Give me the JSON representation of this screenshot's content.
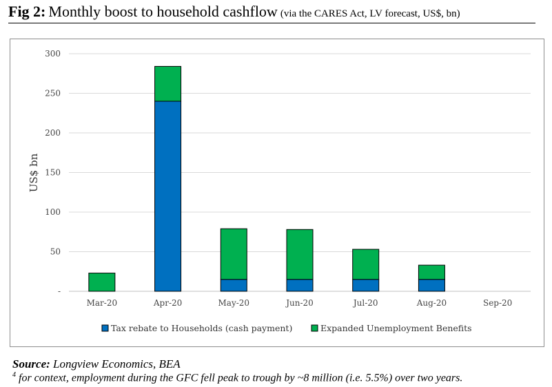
{
  "figure": {
    "label": "Fig 2:",
    "title": "Monthly boost to household cashflow",
    "subtitle": "(via the CARES Act, LV forecast, US$, bn)"
  },
  "chart_data": {
    "type": "bar",
    "stacked": true,
    "categories": [
      "Mar-20",
      "Apr-20",
      "May-20",
      "Jun-20",
      "Jul-20",
      "Aug-20",
      "Sep-20"
    ],
    "series": [
      {
        "name": "Tax rebate to Households (cash payment)",
        "color": "#0070c0",
        "values": [
          0,
          240,
          15,
          15,
          15,
          15,
          0
        ]
      },
      {
        "name": "Expanded Unemployment Benefits",
        "color": "#00b050",
        "values": [
          23,
          44,
          64,
          63,
          38,
          18,
          0
        ]
      }
    ],
    "ylabel": "US$ bn",
    "ylim": [
      0,
      300
    ],
    "yticks": [
      0,
      50,
      100,
      150,
      200,
      250,
      300
    ],
    "ytick_labels": [
      "-",
      "50",
      "100",
      "150",
      "200",
      "250",
      "300"
    ],
    "grid": true,
    "legend": "bottom"
  },
  "source": {
    "label": "Source:",
    "text": "Longview Economics, BEA"
  },
  "footnote": {
    "marker": "4",
    "text": "for context, employment during the GFC fell peak to trough by ~8 million (i.e. 5.5%) over two years."
  }
}
